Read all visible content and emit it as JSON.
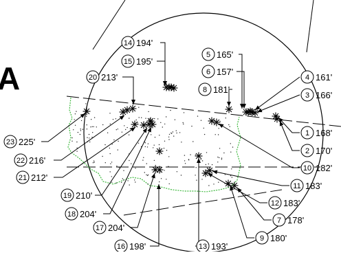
{
  "figure": {
    "letter": "A",
    "markers": [
      {
        "id": "1",
        "label": "168'"
      },
      {
        "id": "2",
        "label": "170'"
      },
      {
        "id": "3",
        "label": "166'"
      },
      {
        "id": "4",
        "label": "161'"
      },
      {
        "id": "5",
        "label": "165'"
      },
      {
        "id": "6",
        "label": "157'"
      },
      {
        "id": "7",
        "label": "178'"
      },
      {
        "id": "8",
        "label": "181'"
      },
      {
        "id": "9",
        "label": "180'"
      },
      {
        "id": "10",
        "label": "182'"
      },
      {
        "id": "11",
        "label": "183'"
      },
      {
        "id": "12",
        "label": "183'"
      },
      {
        "id": "13",
        "label": "193'"
      },
      {
        "id": "14",
        "label": "194'"
      },
      {
        "id": "15",
        "label": "195'"
      },
      {
        "id": "16",
        "label": "198'"
      },
      {
        "id": "17",
        "label": "204'"
      },
      {
        "id": "18",
        "label": "204'"
      },
      {
        "id": "19",
        "label": "210'"
      },
      {
        "id": "20",
        "label": "213'"
      },
      {
        "id": "21",
        "label": "212'"
      },
      {
        "id": "22",
        "label": "216'"
      },
      {
        "id": "23",
        "label": "225'"
      }
    ]
  }
}
